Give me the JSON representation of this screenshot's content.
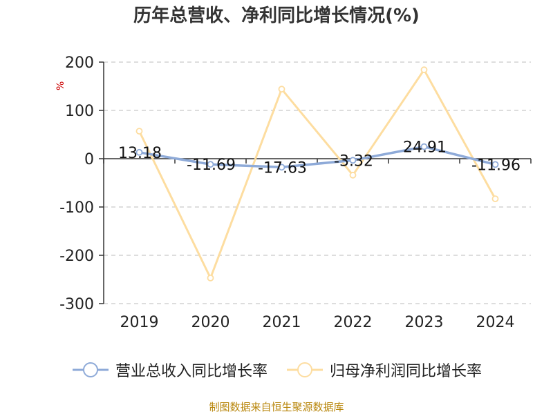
{
  "title": "历年总营收、净利同比增长情况(%)",
  "source": "制图数据来自恒生聚源数据库",
  "chart_data": {
    "type": "line",
    "title": "历年总营收、净利同比增长情况(%)",
    "ylabel": "%",
    "categories": [
      "2019",
      "2020",
      "2021",
      "2022",
      "2023",
      "2024"
    ],
    "ylim": [
      -300,
      200
    ],
    "yticks": [
      "200",
      "100",
      "0",
      "-100",
      "-200",
      "-300"
    ],
    "grid": true,
    "legend_position": "bottom",
    "series": [
      {
        "name": "营业总收入同比增长率",
        "color": "#8eaad8",
        "values": [
          13.18,
          -11.69,
          -17.63,
          -3.32,
          24.91,
          -11.96
        ],
        "labels": [
          "13.18",
          "-11.69",
          "-17.63",
          "-3.32",
          "24.91",
          "-11.96"
        ]
      },
      {
        "name": "归母净利润同比增长率",
        "color": "#fddda0",
        "values": [
          57,
          -247,
          144,
          -34,
          184,
          -83
        ]
      }
    ]
  }
}
